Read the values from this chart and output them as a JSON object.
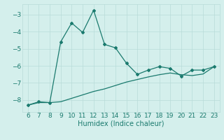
{
  "xlabel": "Humidex (Indice chaleur)",
  "ylabel": "",
  "background_color": "#d4efec",
  "line_color": "#1a7a6e",
  "grid_color": "#b8dbd8",
  "x_main": [
    6,
    7,
    8,
    9,
    10,
    11,
    12,
    13,
    14,
    15,
    16,
    17,
    18,
    19,
    20,
    21,
    22,
    23
  ],
  "y_main": [
    -8.3,
    -8.1,
    -8.15,
    -4.6,
    -3.5,
    -4.05,
    -2.75,
    -4.75,
    -4.95,
    -5.85,
    -6.5,
    -6.25,
    -6.05,
    -6.15,
    -6.6,
    -6.25,
    -6.25,
    -6.05
  ],
  "x_trend": [
    6,
    7,
    8,
    9,
    10,
    11,
    12,
    13,
    14,
    15,
    16,
    17,
    18,
    19,
    20,
    21,
    22,
    23
  ],
  "y_trend": [
    -8.3,
    -8.15,
    -8.15,
    -8.1,
    -7.9,
    -7.7,
    -7.5,
    -7.35,
    -7.15,
    -6.95,
    -6.8,
    -6.65,
    -6.52,
    -6.42,
    -6.52,
    -6.57,
    -6.48,
    -6.05
  ],
  "xlim": [
    5.5,
    23.5
  ],
  "ylim": [
    -8.7,
    -2.4
  ],
  "yticks": [
    -8,
    -7,
    -6,
    -5,
    -4,
    -3
  ],
  "xticks": [
    6,
    7,
    8,
    9,
    10,
    11,
    12,
    13,
    14,
    15,
    16,
    17,
    18,
    19,
    20,
    21,
    22,
    23
  ],
  "marker": "D",
  "markersize": 2.0,
  "linewidth": 0.9,
  "font_color": "#1a7a6e",
  "font_size": 6.5,
  "xlabel_fontsize": 7.0
}
